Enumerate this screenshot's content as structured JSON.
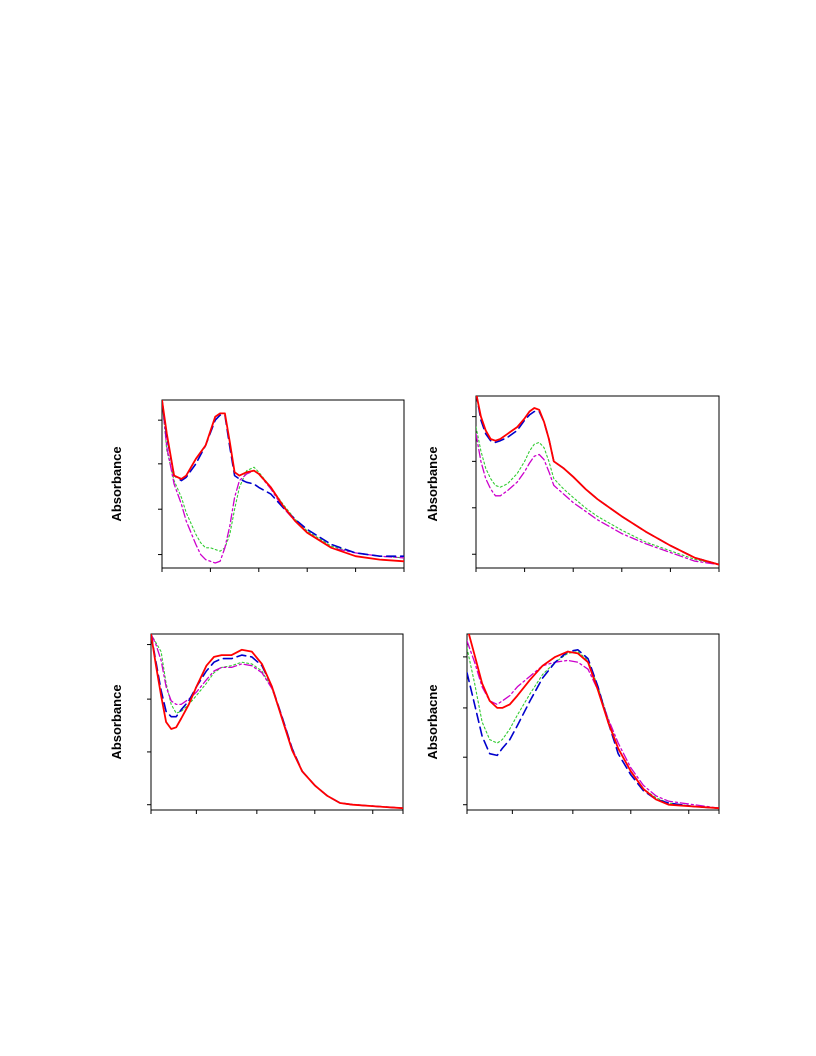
{
  "colors": {
    "s1": "#ff0000",
    "s2": "#0000cc",
    "s3": "#33cc33",
    "s4": "#cc00cc"
  },
  "chart_data": [
    {
      "type": "line",
      "ylabel": "Absorbance",
      "xlim": [
        0,
        100
      ],
      "ylim": [
        0,
        100
      ],
      "xticks": [
        0,
        20,
        40,
        60,
        80,
        100
      ],
      "yticks": [
        8,
        35,
        62,
        88
      ],
      "series": [
        {
          "dash": "solid",
          "color": "#ff0000",
          "x": [
            0,
            2,
            5,
            8,
            10,
            14,
            18,
            22,
            24,
            26,
            28,
            30,
            32,
            35,
            38,
            40,
            45,
            50,
            55,
            60,
            70,
            80,
            90,
            100
          ],
          "y": [
            100,
            80,
            55,
            53,
            55,
            65,
            73,
            90,
            92,
            92,
            75,
            57,
            55,
            57,
            58,
            56,
            48,
            37,
            28,
            21,
            12,
            7,
            5,
            4
          ]
        },
        {
          "dash": "long",
          "color": "#0000cc",
          "x": [
            0,
            2,
            5,
            8,
            10,
            14,
            18,
            22,
            24,
            26,
            28,
            30,
            32,
            35,
            38,
            40,
            45,
            50,
            55,
            60,
            70,
            80,
            90,
            100
          ],
          "y": [
            100,
            78,
            55,
            52,
            54,
            62,
            73,
            88,
            91,
            91,
            72,
            55,
            53,
            51,
            50,
            48,
            44,
            36,
            29,
            23,
            14,
            9,
            7,
            7
          ]
        },
        {
          "dash": "dot",
          "color": "#33cc33",
          "x": [
            0,
            2,
            5,
            8,
            10,
            14,
            16,
            18,
            20,
            22,
            24,
            26,
            28,
            30,
            32,
            35,
            38,
            40,
            45,
            50,
            55,
            60,
            70,
            80,
            90,
            100
          ],
          "y": [
            100,
            70,
            52,
            42,
            33,
            20,
            15,
            12,
            12,
            11,
            10,
            12,
            20,
            35,
            48,
            58,
            60,
            57,
            48,
            38,
            29,
            22,
            13,
            9,
            7,
            6
          ]
        },
        {
          "dash": "dashdot",
          "color": "#cc00cc",
          "x": [
            0,
            2,
            5,
            8,
            10,
            14,
            16,
            18,
            20,
            22,
            24,
            26,
            28,
            30,
            32,
            35,
            38,
            40,
            45,
            50,
            55,
            60,
            70,
            80,
            90,
            100
          ],
          "y": [
            100,
            72,
            50,
            38,
            28,
            14,
            8,
            5,
            4,
            3,
            4,
            12,
            25,
            42,
            52,
            56,
            58,
            56,
            47,
            36,
            28,
            21,
            12,
            9,
            7,
            6
          ]
        }
      ]
    },
    {
      "type": "line",
      "ylabel": "Absorbance",
      "xlim": [
        0,
        100
      ],
      "ylim": [
        0,
        100
      ],
      "xticks": [
        0,
        20,
        40,
        60,
        80,
        100
      ],
      "yticks": [
        8,
        35,
        62,
        88
      ],
      "series": [
        {
          "dash": "solid",
          "color": "#ff0000",
          "x": [
            0,
            2,
            4,
            6,
            8,
            10,
            13,
            17,
            20,
            22,
            24,
            26,
            28,
            30,
            32,
            36,
            40,
            45,
            50,
            60,
            70,
            80,
            90,
            100
          ],
          "y": [
            102,
            88,
            80,
            75,
            74,
            75,
            78,
            82,
            87,
            91,
            93,
            92,
            85,
            75,
            62,
            58,
            53,
            46,
            40,
            30,
            21,
            13,
            6,
            2
          ]
        },
        {
          "dash": "long",
          "color": "#0000cc",
          "x": [
            0,
            2,
            4,
            6,
            8,
            10,
            13,
            17,
            20,
            22,
            24,
            26,
            28,
            30,
            32,
            36,
            40,
            45,
            50,
            60,
            70,
            80,
            90,
            100
          ],
          "y": [
            102,
            86,
            78,
            74,
            73,
            74,
            76,
            80,
            86,
            89,
            91,
            91,
            85,
            75,
            62,
            58,
            53,
            46,
            40,
            30,
            21,
            13,
            6,
            2
          ]
        },
        {
          "dash": "dot",
          "color": "#33cc33",
          "x": [
            0,
            2,
            4,
            6,
            8,
            10,
            13,
            17,
            20,
            22,
            24,
            26,
            28,
            30,
            32,
            36,
            40,
            45,
            50,
            60,
            70,
            80,
            90,
            100
          ],
          "y": [
            82,
            68,
            58,
            52,
            48,
            47,
            49,
            55,
            62,
            68,
            72,
            73,
            70,
            62,
            52,
            46,
            41,
            35,
            30,
            22,
            15,
            10,
            5,
            2
          ]
        },
        {
          "dash": "dashdot",
          "color": "#cc00cc",
          "x": [
            0,
            2,
            4,
            6,
            8,
            10,
            13,
            17,
            20,
            22,
            24,
            26,
            28,
            30,
            32,
            36,
            40,
            45,
            50,
            60,
            70,
            80,
            90,
            100
          ],
          "y": [
            78,
            62,
            52,
            46,
            42,
            42,
            45,
            50,
            56,
            61,
            65,
            66,
            63,
            56,
            48,
            43,
            38,
            33,
            28,
            20,
            14,
            9,
            4,
            2
          ]
        }
      ]
    },
    {
      "type": "line",
      "ylabel": "Absorbance",
      "xlim": [
        0,
        100
      ],
      "ylim": [
        0,
        100
      ],
      "xticks": [
        0,
        18,
        42,
        65,
        88,
        100
      ],
      "yticks": [
        3,
        33,
        63,
        94
      ],
      "series": [
        {
          "dash": "solid",
          "color": "#ff0000",
          "x": [
            0,
            2,
            4,
            6,
            8,
            10,
            12,
            15,
            18,
            22,
            25,
            28,
            32,
            36,
            40,
            44,
            48,
            52,
            56,
            60,
            65,
            70,
            75,
            80,
            90,
            100
          ],
          "y": [
            100,
            82,
            65,
            50,
            46,
            47,
            52,
            60,
            70,
            82,
            87,
            88,
            88,
            91,
            90,
            83,
            70,
            52,
            34,
            22,
            14,
            8,
            4,
            3,
            2,
            1
          ]
        },
        {
          "dash": "long",
          "color": "#0000cc",
          "x": [
            0,
            2,
            4,
            6,
            8,
            10,
            12,
            15,
            18,
            22,
            25,
            28,
            32,
            36,
            40,
            44,
            48,
            52,
            56,
            60,
            65,
            70,
            75,
            80,
            90,
            100
          ],
          "y": [
            100,
            84,
            68,
            56,
            53,
            53,
            57,
            62,
            70,
            79,
            84,
            86,
            86,
            88,
            87,
            82,
            70,
            53,
            35,
            22,
            14,
            8,
            4,
            3,
            2,
            1
          ]
        },
        {
          "dash": "dot",
          "color": "#33cc33",
          "x": [
            0,
            2,
            4,
            6,
            8,
            10,
            12,
            15,
            18,
            22,
            25,
            28,
            32,
            36,
            40,
            44,
            48,
            52,
            56,
            60,
            65,
            70,
            75,
            80,
            90,
            100
          ],
          "y": [
            100,
            95,
            90,
            72,
            60,
            55,
            56,
            60,
            65,
            72,
            78,
            81,
            82,
            84,
            83,
            79,
            69,
            52,
            34,
            22,
            14,
            8,
            4,
            3,
            2,
            1
          ]
        },
        {
          "dash": "dashdot",
          "color": "#cc00cc",
          "x": [
            0,
            2,
            4,
            6,
            8,
            10,
            12,
            15,
            18,
            22,
            25,
            28,
            32,
            36,
            40,
            44,
            48,
            52,
            56,
            60,
            65,
            70,
            75,
            80,
            90,
            100
          ],
          "y": [
            100,
            94,
            85,
            70,
            62,
            60,
            60,
            63,
            67,
            74,
            79,
            81,
            81,
            83,
            82,
            78,
            69,
            53,
            35,
            22,
            14,
            8,
            4,
            3,
            2,
            1
          ]
        }
      ]
    },
    {
      "type": "line",
      "ylabel": "Absorbacne",
      "xlim": [
        0,
        100
      ],
      "ylim": [
        0,
        100
      ],
      "xticks": [
        0,
        18,
        42,
        65,
        88,
        100
      ],
      "yticks": [
        3,
        30,
        58,
        87
      ],
      "series": [
        {
          "dash": "solid",
          "color": "#ff0000",
          "x": [
            0,
            3,
            6,
            9,
            12,
            14,
            17,
            20,
            25,
            30,
            35,
            40,
            44,
            48,
            52,
            56,
            60,
            65,
            70,
            75,
            80,
            90,
            100
          ],
          "y": [
            104,
            88,
            72,
            62,
            58,
            58,
            60,
            65,
            74,
            82,
            87,
            90,
            89,
            84,
            68,
            50,
            35,
            22,
            12,
            6,
            3,
            2,
            1
          ]
        },
        {
          "dash": "long",
          "color": "#0000cc",
          "x": [
            0,
            3,
            6,
            9,
            12,
            14,
            17,
            20,
            25,
            30,
            35,
            40,
            44,
            48,
            52,
            56,
            60,
            65,
            70,
            75,
            80,
            90,
            100
          ],
          "y": [
            78,
            60,
            42,
            32,
            31,
            35,
            40,
            48,
            62,
            75,
            84,
            90,
            91,
            86,
            70,
            50,
            32,
            20,
            11,
            6,
            4,
            2,
            1
          ]
        },
        {
          "dash": "dot",
          "color": "#33cc33",
          "x": [
            0,
            3,
            6,
            9,
            12,
            14,
            17,
            20,
            25,
            30,
            35,
            40,
            44,
            48,
            52,
            56,
            60,
            65,
            70,
            75,
            80,
            90,
            100
          ],
          "y": [
            92,
            72,
            50,
            40,
            38,
            40,
            46,
            54,
            66,
            77,
            84,
            89,
            90,
            85,
            70,
            52,
            35,
            22,
            12,
            7,
            4,
            2,
            1
          ]
        },
        {
          "dash": "dashdot",
          "color": "#cc00cc",
          "x": [
            0,
            3,
            6,
            9,
            12,
            14,
            17,
            20,
            25,
            30,
            35,
            40,
            44,
            48,
            52,
            56,
            60,
            65,
            70,
            75,
            80,
            90,
            100
          ],
          "y": [
            96,
            84,
            70,
            62,
            60,
            62,
            65,
            70,
            76,
            82,
            84,
            85,
            84,
            80,
            68,
            52,
            38,
            24,
            14,
            8,
            5,
            3,
            1
          ]
        }
      ]
    }
  ]
}
